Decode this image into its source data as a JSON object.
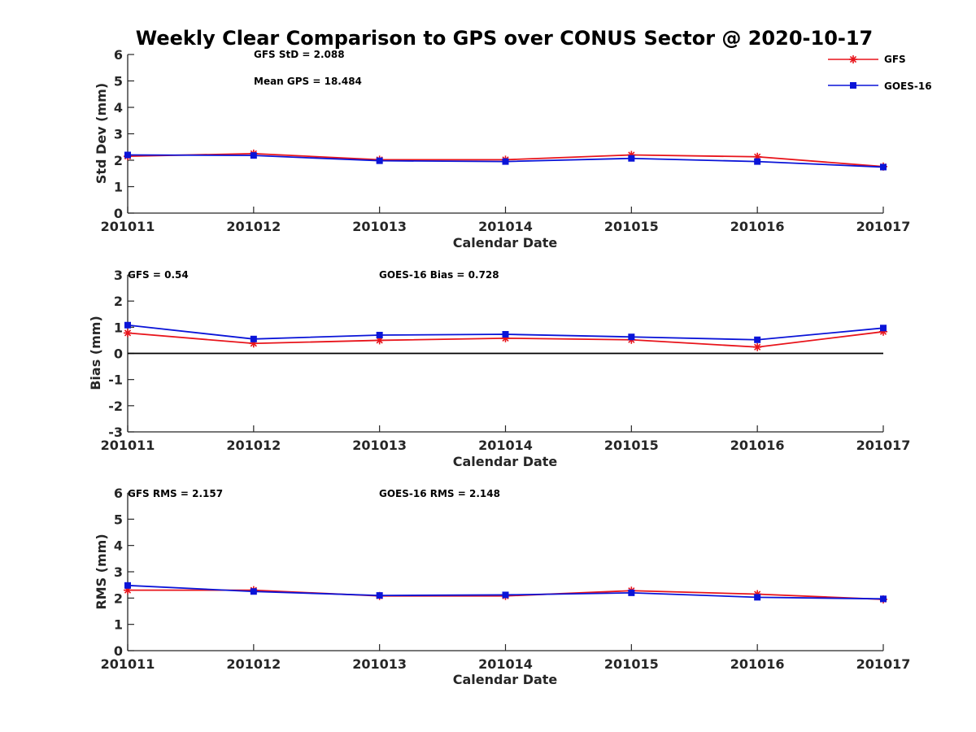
{
  "title": "Weekly Clear Comparison to GPS over CONUS Sector @ 2020-10-17",
  "colors": {
    "GFS": "#e8141b",
    "GOES-16": "#0a14d8",
    "axis": "#262626",
    "zero_line": "#000000"
  },
  "legend": {
    "placement": "top-right",
    "entries": [
      {
        "name": "GFS",
        "marker": "asterisk",
        "color": "#e8141b"
      },
      {
        "name": "GOES-16",
        "marker": "square",
        "color": "#0a14d8"
      }
    ]
  },
  "chart_data": [
    {
      "type": "line",
      "categories": [
        "201011",
        "201012",
        "201013",
        "201014",
        "201015",
        "201016",
        "201017"
      ],
      "xlabel": "Calendar Date",
      "ylabel": "Std Dev (mm)",
      "ylim": [
        0,
        6
      ],
      "yticks": [
        0,
        1,
        2,
        3,
        4,
        5,
        6
      ],
      "zero_line": false,
      "annotations": [
        "GFS StD = 2.088",
        "Mean GPS = 18.484"
      ],
      "series": [
        {
          "name": "GFS",
          "values": [
            2.15,
            2.25,
            2.02,
            2.02,
            2.2,
            2.13,
            1.76
          ]
        },
        {
          "name": "GOES-16",
          "values": [
            2.2,
            2.18,
            1.98,
            1.95,
            2.07,
            1.95,
            1.74
          ]
        }
      ]
    },
    {
      "type": "line",
      "categories": [
        "201011",
        "201012",
        "201013",
        "201014",
        "201015",
        "201016",
        "201017"
      ],
      "xlabel": "Calendar Date",
      "ylabel": "Bias (mm)",
      "ylim": [
        -3,
        3
      ],
      "yticks": [
        -3,
        -2,
        -1,
        0,
        1,
        2,
        3
      ],
      "zero_line": true,
      "annotations": [
        "GFS = 0.54",
        "GOES-16 Bias  = 0.728"
      ],
      "series": [
        {
          "name": "GFS",
          "values": [
            0.78,
            0.38,
            0.5,
            0.58,
            0.52,
            0.24,
            0.83
          ]
        },
        {
          "name": "GOES-16",
          "values": [
            1.08,
            0.55,
            0.7,
            0.73,
            0.63,
            0.52,
            0.97
          ]
        }
      ]
    },
    {
      "type": "line",
      "categories": [
        "201011",
        "201012",
        "201013",
        "201014",
        "201015",
        "201016",
        "201017"
      ],
      "xlabel": "Calendar Date",
      "ylabel": "RMS (mm)",
      "ylim": [
        0,
        6
      ],
      "yticks": [
        0,
        1,
        2,
        3,
        4,
        5,
        6
      ],
      "zero_line": false,
      "annotations": [
        "GFS RMS = 2.157",
        "GOES-16 RMS = 2.148"
      ],
      "series": [
        {
          "name": "GFS",
          "values": [
            2.3,
            2.3,
            2.08,
            2.08,
            2.28,
            2.15,
            1.95
          ]
        },
        {
          "name": "GOES-16",
          "values": [
            2.48,
            2.25,
            2.1,
            2.12,
            2.2,
            2.03,
            1.97
          ]
        }
      ]
    }
  ]
}
